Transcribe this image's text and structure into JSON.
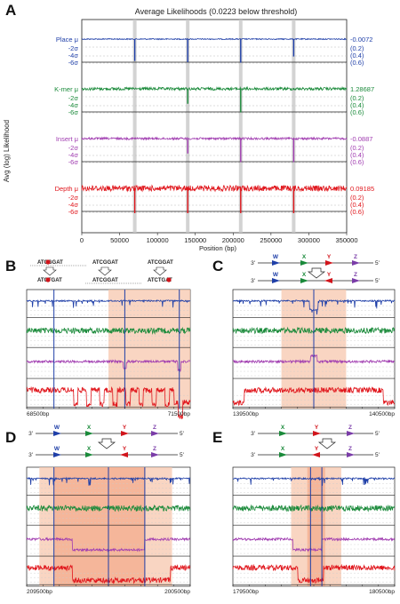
{
  "colors": {
    "place": "#1f3fa8",
    "kmer": "#1a8a3a",
    "insert": "#a03cb0",
    "depth": "#e0161c",
    "highlight": "#f7c7ad",
    "highlight_dark": "#f2a27f",
    "grid": "#bbbbbb",
    "vline": "#9a9a9a"
  },
  "panel_labels": [
    "A",
    "B",
    "C",
    "D",
    "E"
  ],
  "chart_data": [
    {
      "type": "line",
      "panel": "A",
      "title": "Average Likelihoods (0.0223 below threshold)",
      "xlabel": "Position (bp)",
      "ylabel": "Avg (log) Likelihood",
      "xlim": [
        0,
        350000
      ],
      "x_ticks": [
        "0",
        "50000",
        "100000",
        "150000",
        "200000",
        "250000",
        "300000",
        "350000"
      ],
      "sigma_labels": [
        "-2σ",
        "-4σ",
        "-6σ"
      ],
      "highlight_positions": [
        70000,
        140000,
        210000,
        280000
      ],
      "series": [
        {
          "name": "Place",
          "label": "Place μ",
          "mean": "-0.0072",
          "sigmas": [
            "(0.2)",
            "(0.4)",
            "(0.6)"
          ],
          "dips": [
            [
              70000,
              0.88
            ],
            [
              140000,
              0.93
            ],
            [
              210000,
              0.95
            ],
            [
              280000,
              0.7
            ]
          ]
        },
        {
          "name": "K-mer",
          "label": "K-mer μ",
          "mean": "1.28687",
          "sigmas": [
            "(0.2)",
            "(0.4)",
            "(0.6)"
          ],
          "dips": [
            [
              140000,
              0.6
            ],
            [
              210000,
              0.95
            ]
          ]
        },
        {
          "name": "Insert",
          "label": "Insert μ",
          "mean": "-0.0887",
          "sigmas": [
            "(0.2)",
            "(0.4)",
            "(0.6)"
          ],
          "dips": [
            [
              140000,
              0.6
            ],
            [
              210000,
              0.95
            ],
            [
              280000,
              0.95
            ]
          ]
        },
        {
          "name": "Depth",
          "label": "Depth μ",
          "mean": "0.09185",
          "sigmas": [
            "(0.2)",
            "(0.4)",
            "(0.6)"
          ],
          "dips": [
            [
              70000,
              1.0
            ],
            [
              140000,
              1.0
            ],
            [
              210000,
              1.0
            ],
            [
              280000,
              1.0
            ]
          ]
        }
      ]
    },
    {
      "type": "line",
      "panel": "B",
      "xlim": [
        68500,
        71500
      ],
      "x_start_label": "68500bp",
      "x_end_label": "71500bp",
      "highlight_region": [
        70000,
        71500
      ],
      "vlines": [
        69000,
        70300,
        71300
      ]
    },
    {
      "type": "line",
      "panel": "C",
      "xlim": [
        139500,
        140500
      ],
      "x_start_label": "139500bp",
      "x_end_label": "140500bp",
      "highlight_region": [
        139800,
        140200
      ],
      "vlines": [
        140000
      ]
    },
    {
      "type": "line",
      "panel": "D",
      "xlim": [
        209500,
        200500
      ],
      "x_start_label": "209500bp",
      "x_end_label": "200500bp",
      "highlight_region": [
        208800,
        201500
      ],
      "vlines": [
        208000,
        205000,
        203000
      ]
    },
    {
      "type": "line",
      "panel": "E",
      "xlim": [
        179500,
        180500
      ],
      "x_start_label": "179500bp",
      "x_end_label": "180500bp",
      "highlight_region": [
        179860,
        180170
      ],
      "vlines": [
        179980,
        180050
      ]
    }
  ],
  "schematic_B": {
    "groups": [
      {
        "top": "ATCGGAT",
        "bottom": "ATCTGAT"
      },
      {
        "top": "ATCGGAT",
        "bottom": "ATCGGAT"
      },
      {
        "top": "ATCGGAT",
        "bottom": "ATCTGAT"
      }
    ]
  },
  "genes": {
    "letters": [
      "W",
      "X",
      "Y",
      "Z"
    ],
    "strand_left": "3'",
    "strand_right": "5'"
  }
}
